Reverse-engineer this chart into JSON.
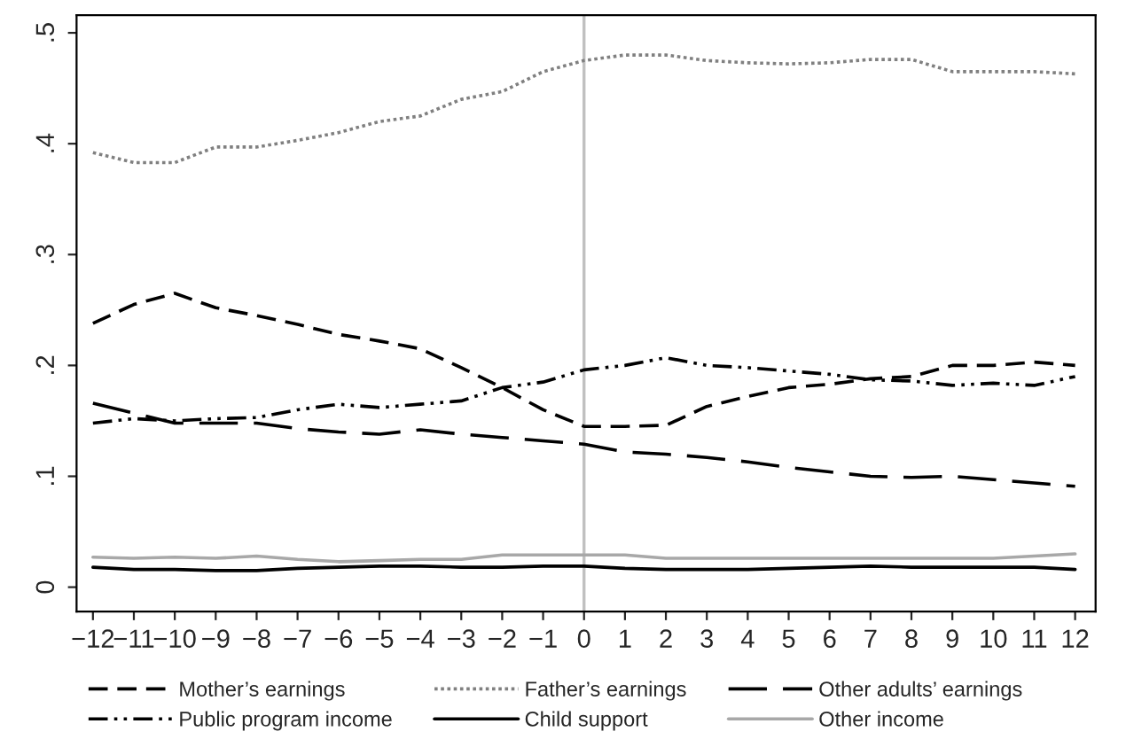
{
  "chart_data": {
    "type": "line",
    "x": [
      -12,
      -11,
      -10,
      -9,
      -8,
      -7,
      -6,
      -5,
      -4,
      -3,
      -2,
      -1,
      0,
      1,
      2,
      3,
      4,
      5,
      6,
      7,
      8,
      9,
      10,
      11,
      12
    ],
    "xlim": [
      -12.4,
      12.5
    ],
    "xticks": [
      {
        "value": -12,
        "label": "−12"
      },
      {
        "value": -11,
        "label": "−11"
      },
      {
        "value": -10,
        "label": "−10"
      },
      {
        "value": -9,
        "label": "−9"
      },
      {
        "value": -8,
        "label": "−8"
      },
      {
        "value": -7,
        "label": "−7"
      },
      {
        "value": -6,
        "label": "−6"
      },
      {
        "value": -5,
        "label": "−5"
      },
      {
        "value": -4,
        "label": "−4"
      },
      {
        "value": -3,
        "label": "−3"
      },
      {
        "value": -2,
        "label": "−2"
      },
      {
        "value": -1,
        "label": "−1"
      },
      0,
      1,
      2,
      3,
      4,
      5,
      6,
      7,
      8,
      9,
      10,
      11,
      12
    ],
    "ylim": [
      -0.022,
      0.516
    ],
    "yticks": [
      0,
      {
        "value": 0.1,
        "label": ".1"
      },
      {
        "value": 0.2,
        "label": ".2"
      },
      {
        "value": 0.3,
        "label": ".3"
      },
      {
        "value": 0.4,
        "label": ".4"
      },
      {
        "value": 0.5,
        "label": ".5"
      }
    ],
    "grid": false,
    "legend": "bottom",
    "marker": "none",
    "ref_lines": [
      {
        "axis": "x",
        "value": 0,
        "color": "#c0c0c0"
      }
    ],
    "series": [
      {
        "name": "Mother’s earnings",
        "color": "#000000",
        "line_style": "dashed",
        "values": [
          0.238,
          0.255,
          0.265,
          0.252,
          0.245,
          0.237,
          0.228,
          0.222,
          0.215,
          0.198,
          0.18,
          0.16,
          0.145,
          0.145,
          0.146,
          0.163,
          0.172,
          0.18,
          0.183,
          0.188,
          0.19,
          0.2,
          0.2,
          0.203,
          0.2
        ]
      },
      {
        "name": "Father’s earnings",
        "color": "#808080",
        "line_style": "dotted",
        "values": [
          0.392,
          0.383,
          0.383,
          0.397,
          0.397,
          0.403,
          0.41,
          0.42,
          0.425,
          0.44,
          0.447,
          0.465,
          0.475,
          0.48,
          0.48,
          0.475,
          0.473,
          0.472,
          0.473,
          0.476,
          0.476,
          0.465,
          0.465,
          0.465,
          0.463
        ]
      },
      {
        "name": "Other adults’ earnings",
        "color": "#000000",
        "line_style": "longdash",
        "values": [
          0.166,
          0.157,
          0.148,
          0.148,
          0.148,
          0.143,
          0.14,
          0.138,
          0.142,
          0.138,
          0.135,
          0.132,
          0.129,
          0.122,
          0.12,
          0.117,
          0.113,
          0.108,
          0.104,
          0.1,
          0.099,
          0.1,
          0.097,
          0.094,
          0.091
        ]
      },
      {
        "name": "Public program income",
        "color": "#000000",
        "line_style": "dashdot",
        "values": [
          0.148,
          0.152,
          0.15,
          0.152,
          0.153,
          0.16,
          0.165,
          0.162,
          0.165,
          0.168,
          0.18,
          0.185,
          0.196,
          0.2,
          0.207,
          0.2,
          0.198,
          0.195,
          0.192,
          0.187,
          0.186,
          0.182,
          0.184,
          0.182,
          0.19
        ]
      },
      {
        "name": "Child support",
        "color": "#000000",
        "line_style": "solid",
        "values": [
          0.018,
          0.016,
          0.016,
          0.015,
          0.015,
          0.017,
          0.018,
          0.019,
          0.019,
          0.018,
          0.018,
          0.019,
          0.019,
          0.017,
          0.016,
          0.016,
          0.016,
          0.017,
          0.018,
          0.019,
          0.018,
          0.018,
          0.018,
          0.018,
          0.016
        ]
      },
      {
        "name": "Other income",
        "color": "#a8a8a8",
        "line_style": "solid",
        "values": [
          0.027,
          0.026,
          0.027,
          0.026,
          0.028,
          0.025,
          0.023,
          0.024,
          0.025,
          0.025,
          0.029,
          0.029,
          0.029,
          0.029,
          0.026,
          0.026,
          0.026,
          0.026,
          0.026,
          0.026,
          0.026,
          0.026,
          0.026,
          0.028,
          0.03
        ]
      }
    ]
  }
}
